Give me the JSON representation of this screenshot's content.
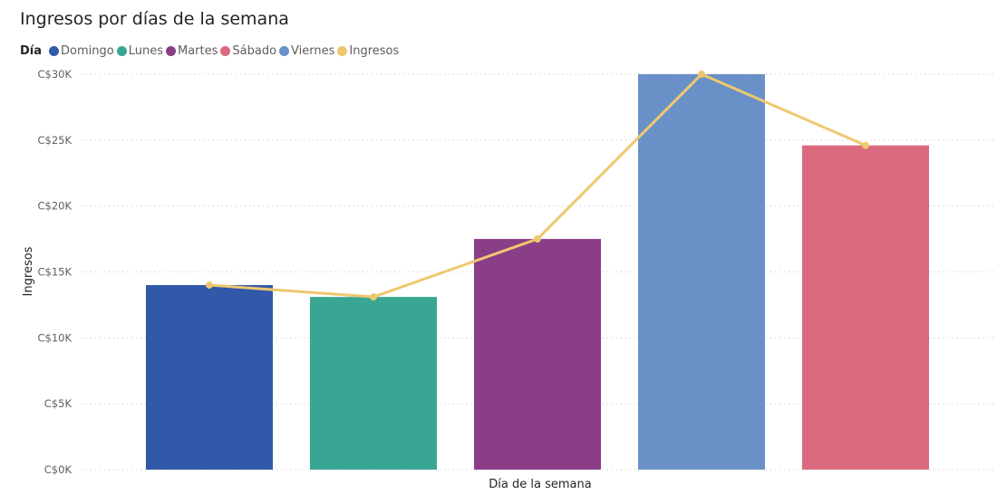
{
  "chart_data": {
    "type": "bar",
    "title": "Ingresos por días de la semana",
    "legend_title": "Día",
    "legend_position": "top-left",
    "legend": [
      {
        "label": "Domingo",
        "color": "#3158a9"
      },
      {
        "label": "Lunes",
        "color": "#39a693"
      },
      {
        "label": "Martes",
        "color": "#8a3e88"
      },
      {
        "label": "Sábado",
        "color": "#dc6a7e"
      },
      {
        "label": "Viernes",
        "color": "#6a90c8"
      },
      {
        "label": "Ingresos",
        "color": "#eec86f"
      }
    ],
    "categories": [
      "Domingo",
      "Lunes",
      "Martes",
      "Viernes",
      "Sábado"
    ],
    "bar_colors": [
      "#3158a9",
      "#39a693",
      "#8a3e88",
      "#6a90c8",
      "#dc6a7e"
    ],
    "series": [
      {
        "name": "Ingresos",
        "type": "bar",
        "values": [
          14000,
          13100,
          17500,
          30000,
          24600
        ]
      },
      {
        "name": "Ingresos",
        "type": "line",
        "color": "#eec86f",
        "values": [
          14000,
          13100,
          17500,
          30000,
          24600
        ]
      }
    ],
    "show_x_tick_labels": false,
    "xlabel": "Día de la semana",
    "ylabel": "Ingresos",
    "ylim": [
      0,
      30000
    ],
    "yticks": [
      0,
      5000,
      10000,
      15000,
      20000,
      25000,
      30000
    ],
    "ytick_labels": [
      "C$0K",
      "C$5K",
      "C$10K",
      "C$15K",
      "C$20K",
      "C$25K",
      "C$30K"
    ],
    "grid": "horizontal dotted"
  }
}
